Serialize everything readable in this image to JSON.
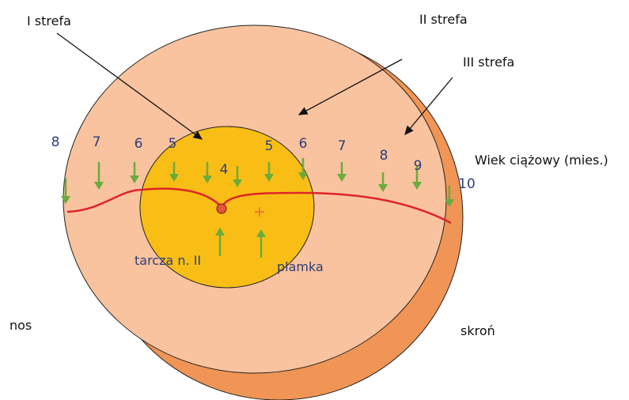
{
  "labels": {
    "zone1": "I strefa",
    "zone2": "II strefa",
    "zone3": "III strefa",
    "age": "Wiek ciążowy (mies.)",
    "nose": "nos",
    "temple": "skroń",
    "disc": "tarcza n. II",
    "macula": "plamka"
  },
  "month_labels": [
    8,
    7,
    6,
    5,
    4,
    5,
    6,
    7,
    8,
    9,
    10
  ]
}
